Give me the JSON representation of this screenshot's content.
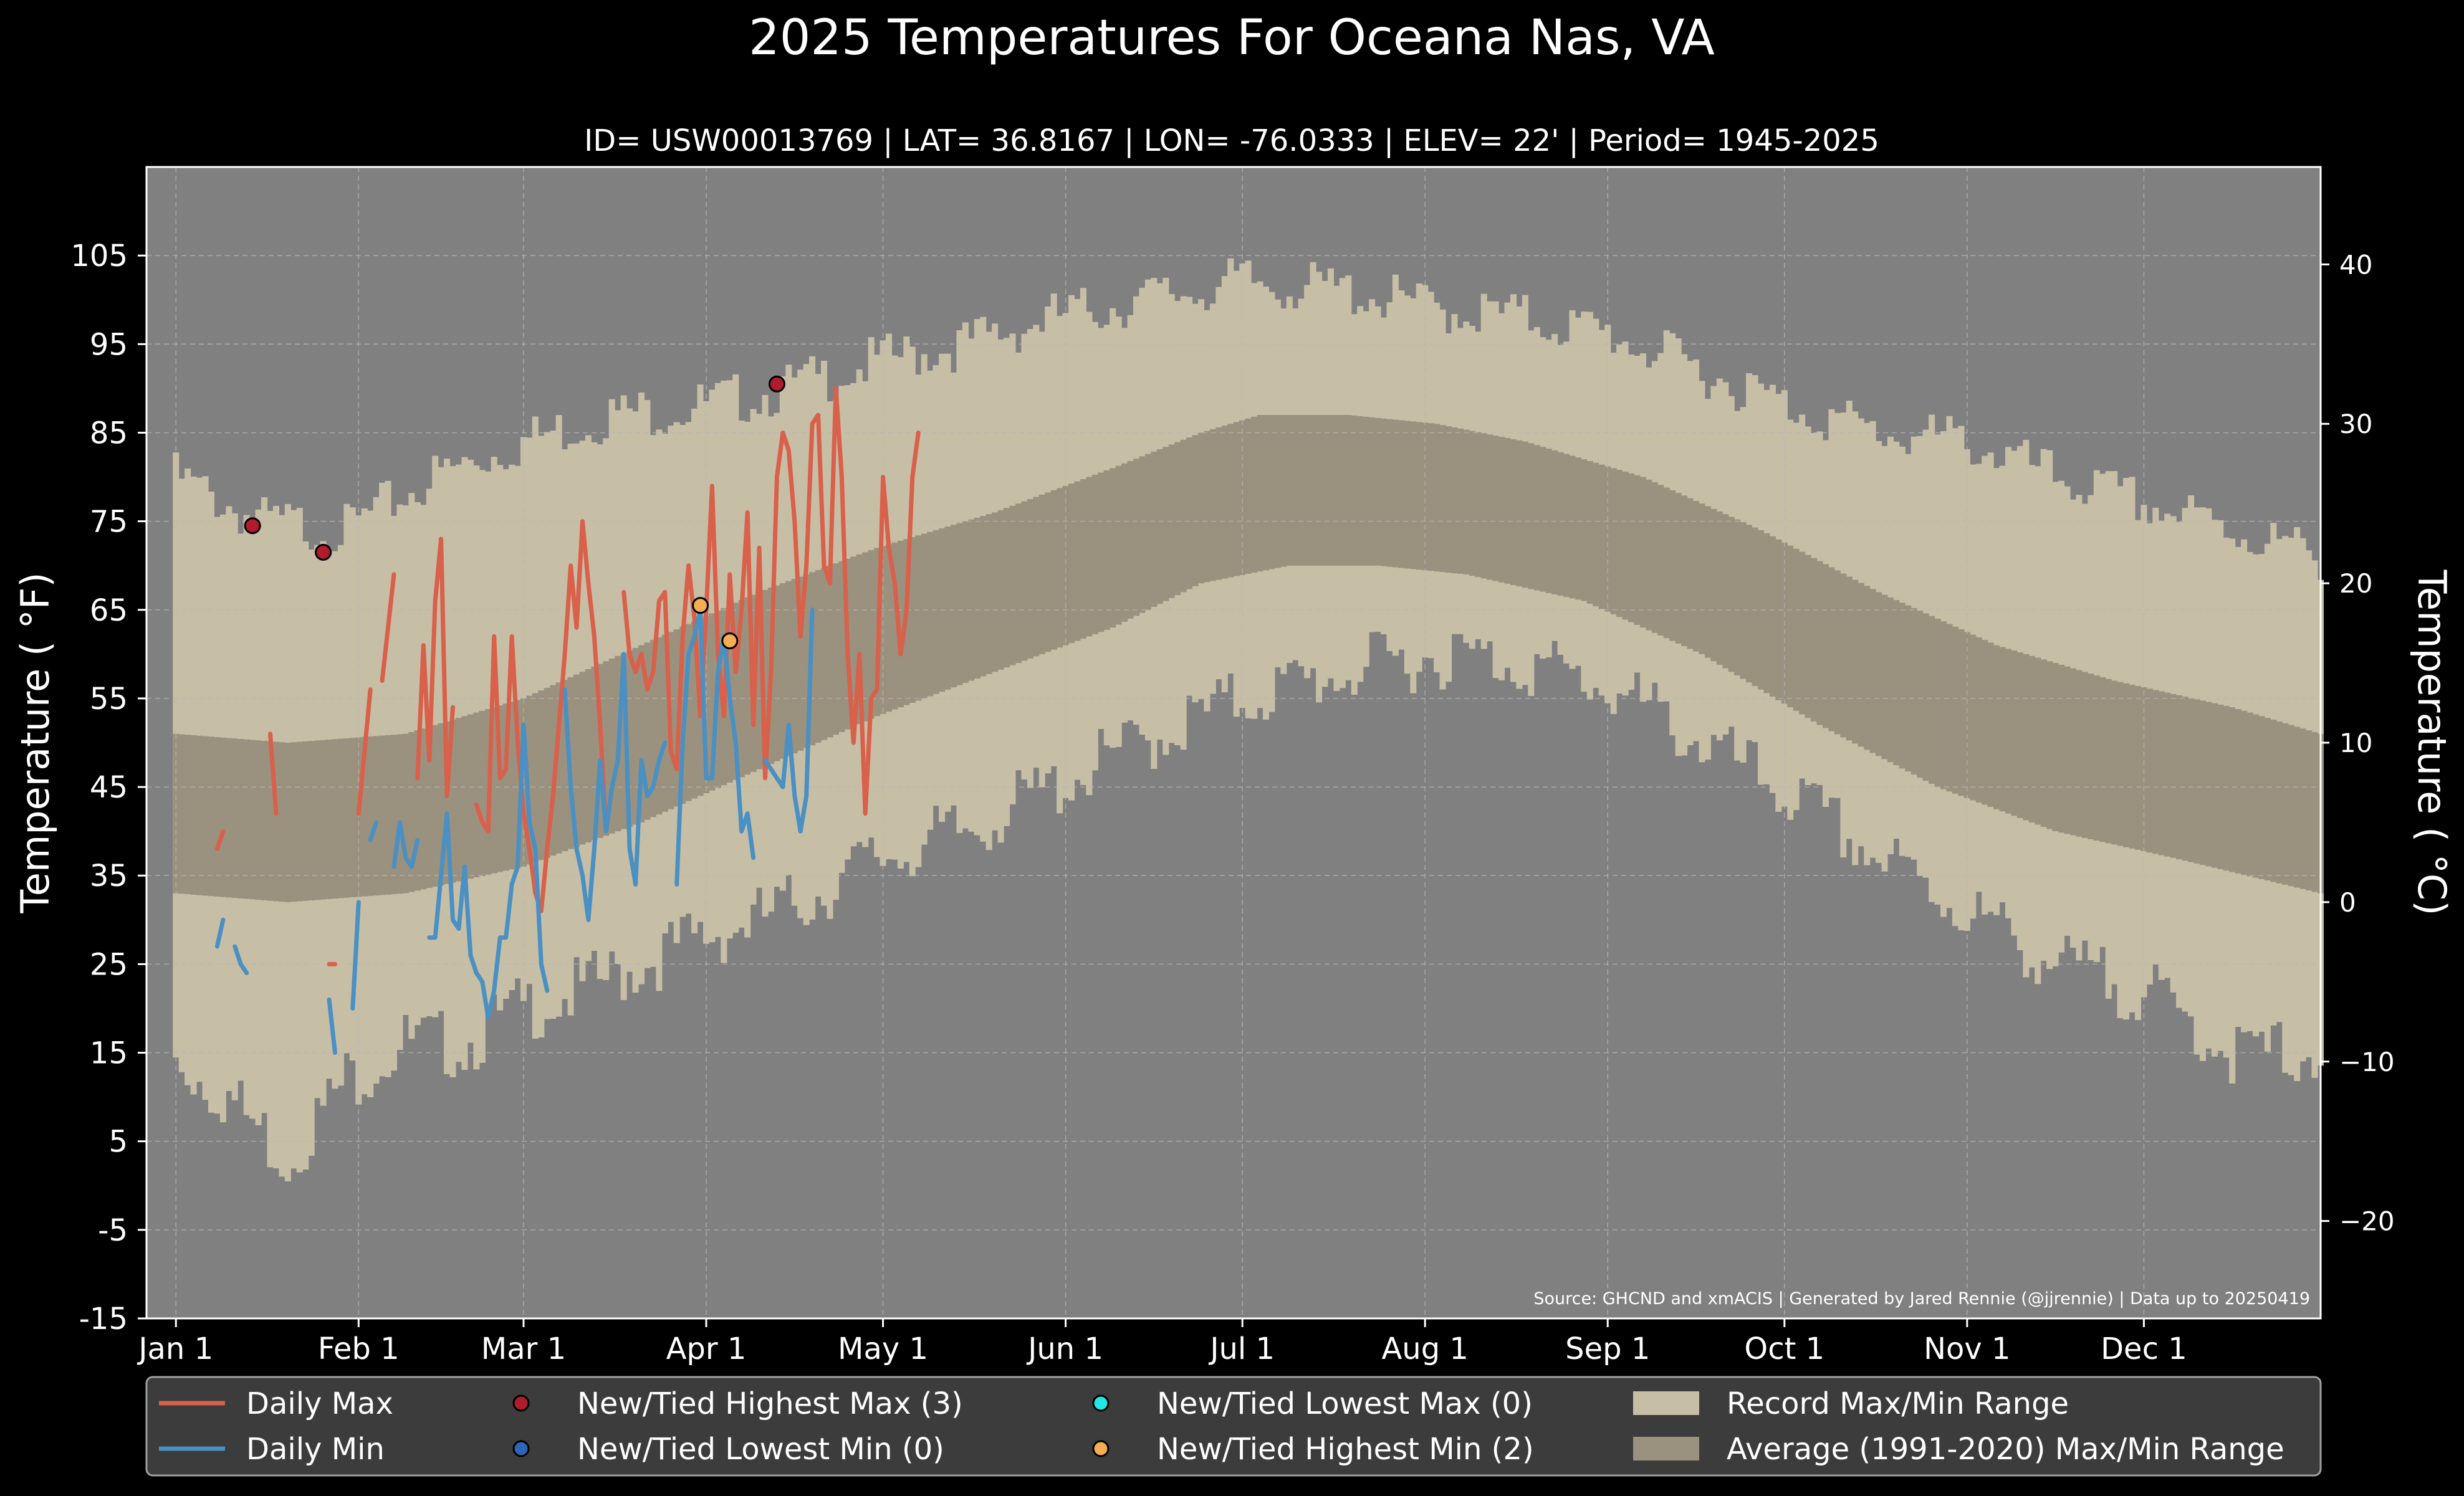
{
  "chart_data": {
    "type": "line",
    "title": "2025 Temperatures For Oceana Nas, VA",
    "subtitle": "ID= USW00013769 | LAT= 36.8167 | LON= -76.0333 | ELEV= 22' | Period= 1945-2025",
    "ylabel_left": "Temperature ($^\\circ$F)",
    "ylabel_left_display": "Temperature ( °F)",
    "ylabel_right_display": "Temperature ( °C)",
    "ylim_f": [
      -15,
      115
    ],
    "y_ticks_f": [
      -15,
      -5,
      5,
      15,
      25,
      35,
      45,
      55,
      65,
      75,
      85,
      95,
      105
    ],
    "y_ticks_c": [
      "−20",
      "−10",
      "0",
      "10",
      "20",
      "30",
      "40"
    ],
    "x_ticks": [
      {
        "label": "Jan 1",
        "day": 1
      },
      {
        "label": "Feb 1",
        "day": 32
      },
      {
        "label": "Mar 1",
        "day": 60
      },
      {
        "label": "Apr 1",
        "day": 91
      },
      {
        "label": "May 1",
        "day": 121
      },
      {
        "label": "Jun 1",
        "day": 152
      },
      {
        "label": "Jul 1",
        "day": 182
      },
      {
        "label": "Aug 1",
        "day": 213
      },
      {
        "label": "Sep 1",
        "day": 244
      },
      {
        "label": "Oct 1",
        "day": 274
      },
      {
        "label": "Nov 1",
        "day": 305
      },
      {
        "label": "Dec 1",
        "day": 335
      }
    ],
    "xlim_days": [
      -4,
      365
    ],
    "source": "Source: GHCND and xmACIS | Generated by Jared Rennie (@jjrennie) | Data up to 20250419",
    "record_max_knots": [
      [
        1,
        80
      ],
      [
        15,
        75
      ],
      [
        30,
        74
      ],
      [
        45,
        80
      ],
      [
        60,
        84
      ],
      [
        75,
        87
      ],
      [
        90,
        88
      ],
      [
        105,
        90
      ],
      [
        120,
        93
      ],
      [
        135,
        95
      ],
      [
        150,
        98
      ],
      [
        165,
        100
      ],
      [
        182,
        102
      ],
      [
        200,
        101
      ],
      [
        215,
        99
      ],
      [
        230,
        98
      ],
      [
        245,
        96
      ],
      [
        260,
        92
      ],
      [
        275,
        88
      ],
      [
        290,
        85
      ],
      [
        305,
        84
      ],
      [
        320,
        80
      ],
      [
        335,
        77
      ],
      [
        350,
        74
      ],
      [
        365,
        71
      ]
    ],
    "record_min_knots": [
      [
        1,
        14
      ],
      [
        10,
        10
      ],
      [
        20,
        3
      ],
      [
        30,
        12
      ],
      [
        40,
        16
      ],
      [
        50,
        16
      ],
      [
        60,
        20
      ],
      [
        70,
        22
      ],
      [
        80,
        25
      ],
      [
        90,
        28
      ],
      [
        100,
        30
      ],
      [
        110,
        33
      ],
      [
        120,
        37
      ],
      [
        135,
        40
      ],
      [
        150,
        45
      ],
      [
        165,
        50
      ],
      [
        182,
        55
      ],
      [
        200,
        58
      ],
      [
        215,
        60
      ],
      [
        230,
        59
      ],
      [
        245,
        56
      ],
      [
        260,
        50
      ],
      [
        275,
        44
      ],
      [
        290,
        37
      ],
      [
        305,
        31
      ],
      [
        320,
        25
      ],
      [
        335,
        22
      ],
      [
        350,
        15
      ],
      [
        365,
        15
      ]
    ],
    "avg_max_knots": [
      [
        1,
        51
      ],
      [
        20,
        50
      ],
      [
        40,
        51
      ],
      [
        60,
        55
      ],
      [
        80,
        61
      ],
      [
        100,
        67
      ],
      [
        120,
        72
      ],
      [
        140,
        76
      ],
      [
        160,
        81
      ],
      [
        175,
        85
      ],
      [
        185,
        87
      ],
      [
        200,
        87
      ],
      [
        215,
        86
      ],
      [
        230,
        84
      ],
      [
        250,
        80
      ],
      [
        270,
        74
      ],
      [
        290,
        67
      ],
      [
        310,
        61
      ],
      [
        330,
        57
      ],
      [
        350,
        54
      ],
      [
        365,
        51
      ]
    ],
    "avg_min_knots": [
      [
        1,
        33
      ],
      [
        20,
        32
      ],
      [
        40,
        33
      ],
      [
        60,
        36
      ],
      [
        80,
        41
      ],
      [
        100,
        47
      ],
      [
        120,
        53
      ],
      [
        140,
        58
      ],
      [
        160,
        63
      ],
      [
        175,
        68
      ],
      [
        190,
        70
      ],
      [
        205,
        70
      ],
      [
        220,
        69
      ],
      [
        240,
        66
      ],
      [
        260,
        60
      ],
      [
        280,
        52
      ],
      [
        300,
        45
      ],
      [
        320,
        40
      ],
      [
        340,
        37
      ],
      [
        365,
        33
      ]
    ],
    "series": [
      {
        "name": "Daily Max",
        "color": "#d9604a",
        "segments": [
          [
            [
              8,
              38
            ],
            [
              9,
              40
            ]
          ],
          [
            [
              17,
              51
            ],
            [
              18,
              42
            ]
          ],
          [
            [
              27,
              25
            ],
            [
              28,
              25
            ]
          ],
          [
            [
              32,
              42
            ],
            [
              34,
              56
            ]
          ],
          [
            [
              36,
              57
            ],
            [
              38,
              69
            ]
          ],
          [
            [
              42,
              46
            ],
            [
              43,
              61
            ],
            [
              44,
              48
            ],
            [
              45,
              66
            ],
            [
              46,
              73
            ],
            [
              47,
              44
            ],
            [
              48,
              54
            ]
          ],
          [
            [
              52,
              43
            ],
            [
              53,
              41
            ],
            [
              54,
              40
            ],
            [
              55,
              62
            ],
            [
              56,
              46
            ],
            [
              57,
              47
            ],
            [
              58,
              62
            ],
            [
              59,
              50
            ],
            [
              60,
              42
            ],
            [
              61,
              38
            ],
            [
              62,
              33
            ],
            [
              63,
              31
            ],
            [
              64,
              38
            ],
            [
              65,
              44
            ],
            [
              66,
              52
            ],
            [
              67,
              60
            ],
            [
              68,
              70
            ],
            [
              69,
              63
            ],
            [
              70,
              75
            ],
            [
              71,
              68
            ],
            [
              72,
              62
            ],
            [
              73,
              52
            ],
            [
              74,
              40
            ],
            [
              75,
              45
            ]
          ],
          [
            [
              77,
              67
            ],
            [
              78,
              60
            ],
            [
              79,
              58
            ],
            [
              80,
              60
            ],
            [
              81,
              56
            ],
            [
              82,
              58
            ],
            [
              83,
              66
            ],
            [
              84,
              67
            ],
            [
              85,
              49
            ],
            [
              86,
              47
            ],
            [
              87,
              62
            ],
            [
              88,
              70
            ],
            [
              89,
              64
            ],
            [
              90,
              53
            ],
            [
              91,
              65
            ],
            [
              92,
              79
            ],
            [
              93,
              60
            ],
            [
              94,
              53
            ],
            [
              95,
              69
            ],
            [
              96,
              58
            ],
            [
              97,
              65
            ],
            [
              98,
              76
            ],
            [
              99,
              52
            ],
            [
              100,
              72
            ],
            [
              101,
              46
            ],
            [
              102,
              58
            ],
            [
              103,
              80
            ],
            [
              104,
              85
            ],
            [
              105,
              83
            ],
            [
              106,
              75
            ],
            [
              107,
              62
            ],
            [
              108,
              70
            ],
            [
              109,
              86
            ],
            [
              110,
              87
            ],
            [
              111,
              70
            ],
            [
              112,
              68
            ],
            [
              113,
              90
            ],
            [
              114,
              80
            ],
            [
              115,
              60
            ],
            [
              116,
              50
            ],
            [
              117,
              60
            ],
            [
              118,
              42
            ],
            [
              119,
              55
            ],
            [
              120,
              56
            ],
            [
              121,
              80
            ],
            [
              122,
              72
            ],
            [
              123,
              68
            ],
            [
              124,
              60
            ],
            [
              125,
              65
            ],
            [
              126,
              80
            ],
            [
              127,
              85
            ]
          ]
        ]
      },
      {
        "name": "Daily Min",
        "color": "#4a90c2",
        "segments": [
          [
            [
              8,
              27
            ],
            [
              9,
              30
            ]
          ],
          [
            [
              11,
              27
            ],
            [
              12,
              25
            ],
            [
              13,
              24
            ]
          ],
          [
            [
              27,
              21
            ],
            [
              28,
              15
            ]
          ],
          [
            [
              31,
              20
            ],
            [
              32,
              32
            ]
          ],
          [
            [
              34,
              39
            ],
            [
              35,
              41
            ]
          ],
          [
            [
              38,
              36
            ],
            [
              39,
              41
            ],
            [
              40,
              37
            ],
            [
              41,
              36
            ],
            [
              42,
              39
            ]
          ],
          [
            [
              44,
              28
            ],
            [
              45,
              28
            ],
            [
              46,
              35
            ],
            [
              47,
              42
            ],
            [
              48,
              30
            ],
            [
              49,
              29
            ],
            [
              50,
              36
            ],
            [
              51,
              26
            ],
            [
              52,
              24
            ],
            [
              53,
              23
            ],
            [
              54,
              19
            ],
            [
              55,
              22
            ],
            [
              56,
              28
            ],
            [
              57,
              28
            ],
            [
              58,
              34
            ],
            [
              59,
              36
            ],
            [
              60,
              52
            ],
            [
              61,
              41
            ],
            [
              62,
              38
            ],
            [
              63,
              25
            ],
            [
              64,
              22
            ]
          ],
          [
            [
              67,
              56
            ],
            [
              68,
              45
            ],
            [
              69,
              38
            ],
            [
              70,
              35
            ],
            [
              71,
              30
            ],
            [
              72,
              38
            ],
            [
              73,
              48
            ],
            [
              74,
              40
            ],
            [
              75,
              45
            ],
            [
              76,
              48
            ],
            [
              77,
              60
            ],
            [
              78,
              38
            ],
            [
              79,
              34
            ],
            [
              80,
              48
            ],
            [
              81,
              44
            ],
            [
              82,
              45
            ],
            [
              83,
              48
            ],
            [
              84,
              50
            ]
          ],
          [
            [
              86,
              34
            ],
            [
              87,
              50
            ],
            [
              88,
              60
            ],
            [
              89,
              62
            ],
            [
              90,
              65
            ],
            [
              91,
              46
            ],
            [
              92,
              46
            ],
            [
              93,
              58
            ],
            [
              94,
              62
            ],
            [
              95,
              55
            ],
            [
              96,
              50
            ],
            [
              97,
              40
            ],
            [
              98,
              42
            ],
            [
              99,
              37
            ]
          ],
          [
            [
              101,
              48
            ],
            [
              102,
              47
            ],
            [
              103,
              46
            ],
            [
              104,
              45
            ],
            [
              105,
              52
            ],
            [
              106,
              44
            ],
            [
              107,
              40
            ],
            [
              108,
              44
            ],
            [
              109,
              65
            ]
          ]
        ]
      }
    ],
    "markers": [
      {
        "name": "New/Tied Highest Max",
        "day": 14,
        "value": 74.5,
        "color": "#b01c2e"
      },
      {
        "name": "New/Tied Highest Max",
        "day": 26,
        "value": 71.5,
        "color": "#b01c2e"
      },
      {
        "name": "New/Tied Highest Max",
        "day": 103,
        "value": 90.5,
        "color": "#b01c2e"
      },
      {
        "name": "New/Tied Highest Min",
        "day": 90,
        "value": 65.5,
        "color": "#f5ad52"
      },
      {
        "name": "New/Tied Highest Min",
        "day": 95,
        "value": 61.5,
        "color": "#f5ad52"
      }
    ],
    "legend": {
      "placement": "bottom",
      "items": [
        {
          "label": "Daily Max",
          "kind": "line",
          "color": "#d9604a"
        },
        {
          "label": "Daily Min",
          "kind": "line",
          "color": "#4a90c2"
        },
        {
          "label": "New/Tied Highest Max (3)",
          "kind": "dot",
          "color": "#b01c2e"
        },
        {
          "label": "New/Tied Lowest Min (0)",
          "kind": "dot",
          "color": "#2b66b8"
        },
        {
          "label": "New/Tied Lowest Max (0)",
          "kind": "dot",
          "color": "#22e6e6"
        },
        {
          "label": "New/Tied Highest Min (2)",
          "kind": "dot",
          "color": "#f5ad52"
        },
        {
          "label": "Record Max/Min Range",
          "kind": "patch",
          "color": "#c7bea6"
        },
        {
          "label": "Average (1991-2020) Max/Min Range",
          "kind": "patch",
          "color": "#9a917f"
        }
      ]
    },
    "colors": {
      "background": "#000000",
      "plot_background": "#808080",
      "record_range": "#c7bea6",
      "average_range": "#9a917f",
      "legend_background": "#3c3c3c"
    }
  }
}
